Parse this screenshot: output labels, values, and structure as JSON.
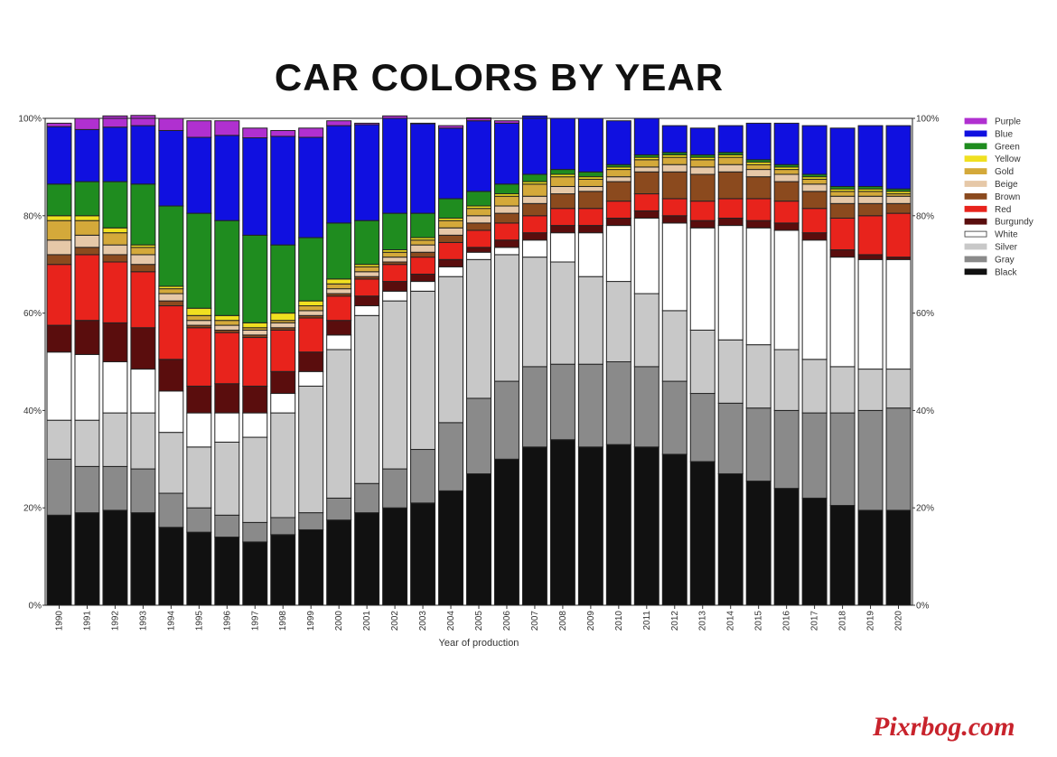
{
  "chart_data": {
    "type": "bar",
    "stacked": true,
    "title": "CAR COLORS BY YEAR",
    "xlabel": "Year of production",
    "ylabel": "",
    "ylim": [
      0,
      100
    ],
    "yticks": [
      "0%",
      "20%",
      "40%",
      "60%",
      "80%",
      "100%"
    ],
    "legend_position": "right",
    "grid": false,
    "categories": [
      "1990",
      "1991",
      "1992",
      "1993",
      "1994",
      "1995",
      "1996",
      "1997",
      "1998",
      "1999",
      "2000",
      "2001",
      "2002",
      "2003",
      "2004",
      "2005",
      "2006",
      "2007",
      "2008",
      "2009",
      "2010",
      "2011",
      "2012",
      "2013",
      "2014",
      "2015",
      "2016",
      "2017",
      "2018",
      "2019",
      "2020"
    ],
    "series": [
      {
        "name": "Black",
        "color": "#111111",
        "values": [
          18.5,
          19,
          19.5,
          19,
          16,
          15,
          14,
          13,
          14.5,
          15.5,
          17.5,
          19,
          20,
          21,
          23.5,
          27,
          30,
          32.5,
          34,
          32.5,
          33,
          32.5,
          31,
          29.5,
          27,
          25.5,
          24,
          22,
          20.5,
          19.5,
          19.5
        ]
      },
      {
        "name": "Gray",
        "color": "#8a8a8a",
        "values": [
          11.5,
          9.5,
          9,
          9,
          7,
          5,
          4.5,
          4,
          3.5,
          3.5,
          4.5,
          6,
          8,
          11,
          14,
          15.5,
          16,
          16.5,
          15.5,
          17,
          17,
          16.5,
          15,
          14,
          14.5,
          15,
          16,
          17.5,
          19,
          20.5,
          21
        ]
      },
      {
        "name": "Silver",
        "color": "#c8c8c8",
        "values": [
          8,
          9.5,
          11,
          11.5,
          12.5,
          12.5,
          15,
          17.5,
          21.5,
          26,
          30.5,
          34.5,
          34.5,
          32.5,
          30,
          28.5,
          26,
          22.5,
          21,
          18,
          16.5,
          15,
          14.5,
          13,
          13,
          13,
          12.5,
          11,
          9.5,
          8.5,
          8
        ]
      },
      {
        "name": "White",
        "color": "#ffffff",
        "values": [
          14,
          13.5,
          10.5,
          9,
          8.5,
          7,
          6,
          5,
          4,
          3,
          3,
          2,
          2,
          2,
          2,
          1.5,
          1.5,
          3.5,
          6,
          9,
          11.5,
          15.5,
          18,
          21,
          23.5,
          24,
          24.5,
          24.5,
          22.5,
          22.5,
          22.5
        ]
      },
      {
        "name": "Burgundy",
        "color": "#5a0d0d",
        "values": [
          5.5,
          7,
          8,
          8.5,
          6.5,
          5.5,
          6,
          5.5,
          4.5,
          4,
          3,
          2,
          2,
          1.5,
          1.5,
          1,
          1.5,
          1.5,
          1.5,
          1.5,
          1.5,
          1.5,
          1.5,
          1.5,
          1.5,
          1.5,
          1.5,
          1.5,
          1.5,
          1,
          0.5
        ]
      },
      {
        "name": "Red",
        "color": "#e8231c",
        "values": [
          12.5,
          13.5,
          12.5,
          11.5,
          11,
          12,
          10.5,
          10,
          8.5,
          7,
          5,
          3.5,
          3.5,
          3.5,
          3.5,
          3.5,
          3.5,
          3.5,
          3.5,
          3.5,
          3.5,
          3.5,
          3.5,
          4,
          4,
          4.5,
          4.5,
          5,
          6.5,
          8,
          9
        ]
      },
      {
        "name": "Brown",
        "color": "#8b4a1e",
        "values": [
          2,
          1.5,
          1.5,
          1.5,
          1,
          0.5,
          0.5,
          0.5,
          0.5,
          0.5,
          0.5,
          0.5,
          0.5,
          1,
          1.5,
          1.5,
          2,
          2.5,
          3,
          3.5,
          4,
          4.5,
          5.5,
          5.5,
          5.5,
          4.5,
          4,
          3.5,
          3,
          2.5,
          2
        ]
      },
      {
        "name": "Beige",
        "color": "#e6c8a8",
        "values": [
          3,
          2.5,
          2,
          2,
          1.5,
          1,
          1,
          1,
          1,
          1,
          1,
          1,
          1,
          1.5,
          1.5,
          1.5,
          1.5,
          1.5,
          1.5,
          1,
          1,
          1,
          1.5,
          1.5,
          1.5,
          1.5,
          1.5,
          1.5,
          1.5,
          1.5,
          1.5
        ]
      },
      {
        "name": "Gold",
        "color": "#d4a93a",
        "values": [
          4,
          3,
          2.5,
          1.5,
          1,
          1,
          1,
          0.5,
          0.5,
          1,
          1,
          1,
          1,
          1,
          1.5,
          1.5,
          2,
          2.5,
          2,
          1.5,
          1.5,
          1.5,
          1.5,
          1.5,
          1.5,
          1,
          1,
          1,
          1,
          1,
          0.5
        ]
      },
      {
        "name": "Yellow",
        "color": "#f0e020",
        "values": [
          1,
          1,
          1,
          0.5,
          0.5,
          1.5,
          1,
          1,
          1.5,
          1,
          1,
          0.5,
          0.5,
          0.5,
          0.5,
          0.5,
          0.5,
          0.5,
          0.5,
          0.5,
          0.5,
          0.5,
          0.5,
          0.5,
          0.5,
          0.5,
          0.5,
          0.5,
          0.5,
          0.5,
          0.5
        ]
      },
      {
        "name": "Green",
        "color": "#1f8c1f",
        "values": [
          6.5,
          7,
          9.5,
          12.5,
          16.5,
          19.5,
          19.5,
          18,
          14,
          13,
          11.5,
          9,
          7.5,
          5,
          4,
          3,
          2,
          1.5,
          1,
          1,
          0.5,
          0.5,
          0.5,
          0.5,
          0.5,
          0.5,
          0.5,
          0.5,
          0.5,
          0.5,
          0.5
        ]
      },
      {
        "name": "Blue",
        "color": "#1010e0",
        "values": [
          11.8,
          10.7,
          11.2,
          12,
          15.5,
          15.6,
          17.5,
          20,
          22.3,
          20.6,
          20,
          19.7,
          19.5,
          18.4,
          14.5,
          14.5,
          12.5,
          12,
          10.5,
          11,
          9,
          7.5,
          5.5,
          5.5,
          5.5,
          7.5,
          8.5,
          10,
          12,
          12.5,
          13
        ]
      },
      {
        "name": "Purple",
        "color": "#b030d0",
        "values": [
          0.7,
          2.3,
          2.3,
          2.1,
          2.5,
          3.4,
          3,
          2,
          1.2,
          1.9,
          1,
          0.3,
          0.5,
          0.1,
          0.5,
          0.6,
          0.5,
          0,
          0,
          0,
          0,
          0,
          0,
          0,
          0,
          0,
          0,
          0,
          0,
          0,
          0
        ]
      }
    ],
    "legend_order": [
      "Purple",
      "Blue",
      "Green",
      "Yellow",
      "Gold",
      "Beige",
      "Brown",
      "Red",
      "Burgundy",
      "White",
      "Silver",
      "Gray",
      "Black"
    ]
  },
  "watermark": "Pixrbog.com"
}
